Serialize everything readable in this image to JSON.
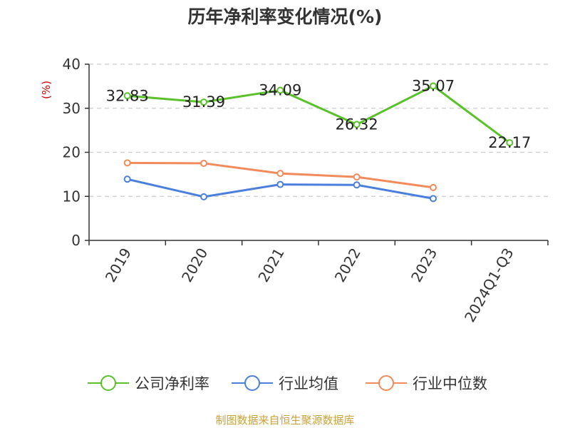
{
  "chart_data": {
    "type": "line",
    "title": "历年净利率变化情况(%)",
    "ylabel": "(%)",
    "xlabel": "",
    "ylim": [
      0,
      40
    ],
    "yticks": [
      0,
      10,
      20,
      30,
      40
    ],
    "grid": "y-dashed",
    "legend_position": "bottom",
    "categories": [
      "2019",
      "2020",
      "2021",
      "2022",
      "2023",
      "2024Q1-Q3"
    ],
    "series": [
      {
        "name": "公司净利率",
        "color": "#5bc12a",
        "values": [
          32.83,
          31.39,
          34.09,
          26.32,
          35.07,
          22.17
        ],
        "labels": [
          "32.83",
          "31.39",
          "34.09",
          "26.32",
          "35.07",
          "22.17"
        ]
      },
      {
        "name": "行业均值",
        "color": "#4a7fdc",
        "values": [
          13.9,
          9.9,
          12.7,
          12.6,
          9.5,
          null
        ]
      },
      {
        "name": "行业中位数",
        "color": "#f28a5b",
        "values": [
          17.6,
          17.5,
          15.2,
          14.4,
          12.0,
          null
        ]
      }
    ],
    "colors": {
      "unit": "#cc0000",
      "axis": "#333333",
      "grid": "#cccccc"
    }
  },
  "footer": {
    "source": "制图数据来自恒生聚源数据库"
  }
}
